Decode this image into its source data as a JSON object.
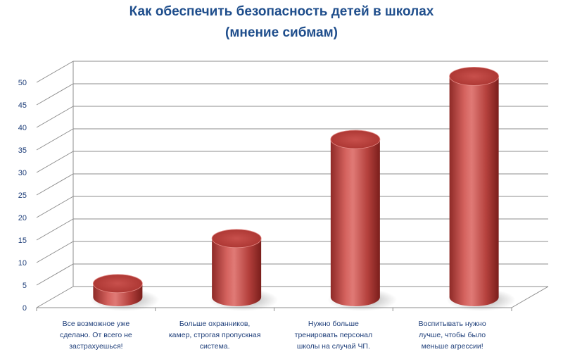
{
  "colors": {
    "bar": "#c0504d",
    "bar_dark": "#7f1f1c",
    "bar_light": "#e3807d",
    "title": "#1f4e8c",
    "gridline": "#7f7f7f"
  },
  "chart_data": {
    "type": "bar",
    "style": "3d-cylinder",
    "title": "Как обеспечить безопасность детей в школах",
    "subtitle": "(мнение сибмам)",
    "xlabel": "",
    "ylabel": "",
    "ylim": [
      0,
      50
    ],
    "yticks": [
      0,
      5,
      10,
      15,
      20,
      25,
      30,
      35,
      40,
      45,
      50
    ],
    "grid": true,
    "legend": "none",
    "categories": [
      [
        "Все возможное уже",
        "сделано. От всего не",
        "застрахуешься!"
      ],
      [
        "Больше охранников,",
        "камер, строгая пропускная",
        "система."
      ],
      [
        "Нужно больше",
        "тренировать персонал",
        "школы на случай ЧП."
      ],
      [
        "Воспитывать нужно",
        "лучше, чтобы было",
        "меньше агрессии!"
      ]
    ],
    "values": [
      3,
      13,
      35,
      49
    ]
  }
}
